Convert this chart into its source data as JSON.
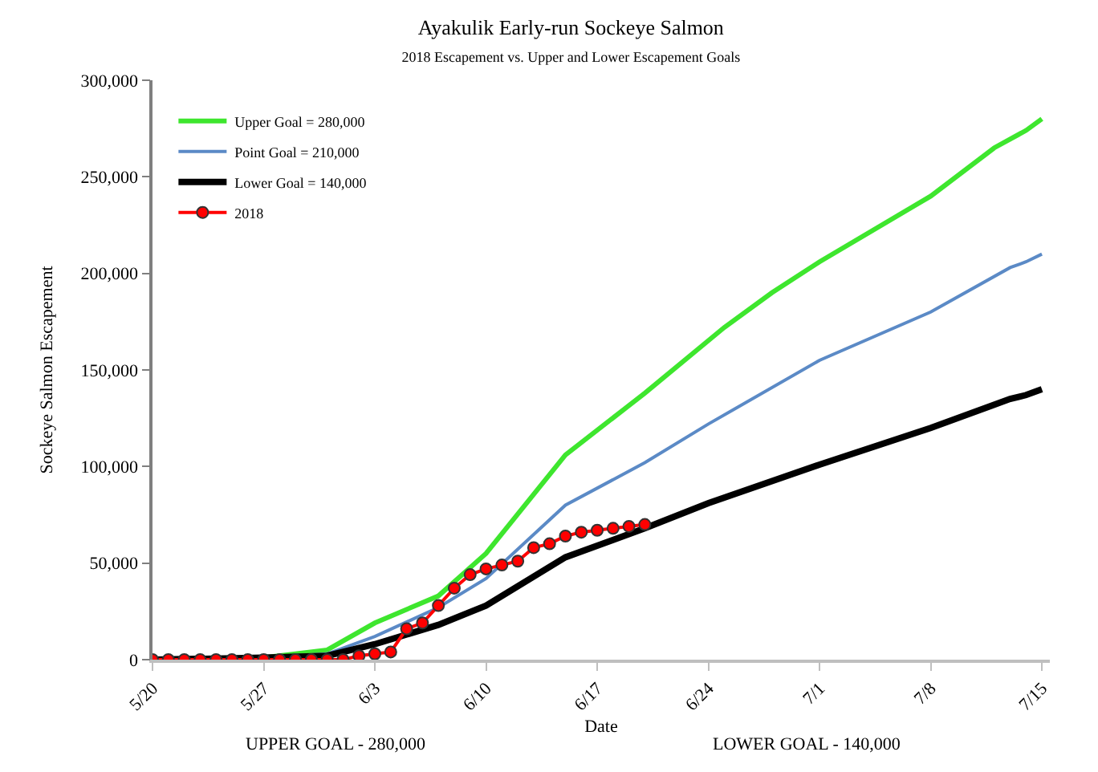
{
  "chart_data": {
    "type": "line",
    "title": "Ayakulik Early-run Sockeye Salmon",
    "subtitle": "2018 Escapement vs. Upper and Lower Escapement Goals",
    "xlabel": "Date",
    "ylabel": "Sockeye Salmon Escapement",
    "annotations": [
      "UPPER GOAL - 280,000",
      "LOWER GOAL - 140,000"
    ],
    "xlim": [
      "2018-05-20",
      "2018-07-15T12:00"
    ],
    "xticks": [
      {
        "value": "2018-05-20",
        "label": "5/20"
      },
      {
        "value": "2018-05-27",
        "label": "5/27"
      },
      {
        "value": "2018-06-03",
        "label": "6/3"
      },
      {
        "value": "2018-06-10",
        "label": "6/10"
      },
      {
        "value": "2018-06-17",
        "label": "6/17"
      },
      {
        "value": "2018-06-24",
        "label": "6/24"
      },
      {
        "value": "2018-07-01",
        "label": "7/1"
      },
      {
        "value": "2018-07-08",
        "label": "7/8"
      },
      {
        "value": "2018-07-15",
        "label": "7/15"
      }
    ],
    "ylim": [
      0,
      300000
    ],
    "yticks": [
      0,
      {
        "value": 50000,
        "label": "50,000"
      },
      {
        "value": 100000,
        "label": "100,000"
      },
      {
        "value": 150000,
        "label": "150,000"
      },
      {
        "value": 200000,
        "label": "200,000"
      },
      {
        "value": 250000,
        "label": "250,000"
      },
      {
        "value": 300000,
        "label": "300,000"
      }
    ],
    "legend": "top left",
    "series": [
      {
        "name": "Upper Goal = 280,000",
        "color": "#3ee62e",
        "x": [
          "2018-05-20",
          "2018-05-27",
          "2018-05-31",
          "2018-06-03",
          "2018-06-07",
          "2018-06-10",
          "2018-06-15",
          "2018-06-20",
          "2018-06-25",
          "2018-06-28",
          "2018-07-01",
          "2018-07-08",
          "2018-07-12",
          "2018-07-14",
          "2018-07-15"
        ],
        "values": [
          0,
          1000,
          5000,
          19000,
          33000,
          55000,
          106000,
          138000,
          172000,
          190000,
          206000,
          240000,
          265000,
          274000,
          280000
        ],
        "marker": "none"
      },
      {
        "name": "Point Goal = 210,000",
        "color": "#5b8ac6",
        "x": [
          "2018-05-20",
          "2018-05-27",
          "2018-05-31",
          "2018-06-03",
          "2018-06-07",
          "2018-06-10",
          "2018-06-15",
          "2018-06-20",
          "2018-06-24",
          "2018-07-01",
          "2018-07-08",
          "2018-07-13",
          "2018-07-14",
          "2018-07-15"
        ],
        "values": [
          0,
          1000,
          3000,
          12000,
          27000,
          42000,
          80000,
          102000,
          122000,
          155000,
          180000,
          203000,
          206000,
          210000
        ],
        "marker": "none"
      },
      {
        "name": "Lower Goal = 140,000",
        "color": "#000000",
        "x": [
          "2018-05-20",
          "2018-05-27",
          "2018-05-31",
          "2018-06-03",
          "2018-06-07",
          "2018-06-10",
          "2018-06-15",
          "2018-06-20",
          "2018-06-24",
          "2018-07-01",
          "2018-07-08",
          "2018-07-13",
          "2018-07-14",
          "2018-07-15"
        ],
        "values": [
          0,
          1000,
          2000,
          8000,
          18000,
          28000,
          53000,
          68000,
          81000,
          101000,
          120000,
          135000,
          137000,
          140000
        ],
        "marker": "none"
      },
      {
        "name": "2018",
        "color": "#ff0000",
        "marker": "circle",
        "x": [
          "2018-05-20",
          "2018-05-21",
          "2018-05-22",
          "2018-05-23",
          "2018-05-24",
          "2018-05-25",
          "2018-05-26",
          "2018-05-27",
          "2018-05-28",
          "2018-05-29",
          "2018-05-30",
          "2018-05-31",
          "2018-06-01",
          "2018-06-02",
          "2018-06-03",
          "2018-06-04",
          "2018-06-05",
          "2018-06-06",
          "2018-06-07",
          "2018-06-08",
          "2018-06-09",
          "2018-06-10",
          "2018-06-11",
          "2018-06-12",
          "2018-06-13",
          "2018-06-14",
          "2018-06-15",
          "2018-06-16",
          "2018-06-17",
          "2018-06-18",
          "2018-06-19",
          "2018-06-20"
        ],
        "values": [
          0,
          0,
          0,
          0,
          0,
          0,
          0,
          0,
          0,
          0,
          0,
          0,
          0,
          2000,
          3000,
          4000,
          16000,
          19000,
          28000,
          37000,
          44000,
          47000,
          49000,
          51000,
          58000,
          60000,
          64000,
          66000,
          67000,
          68000,
          69000,
          70000
        ]
      }
    ]
  }
}
